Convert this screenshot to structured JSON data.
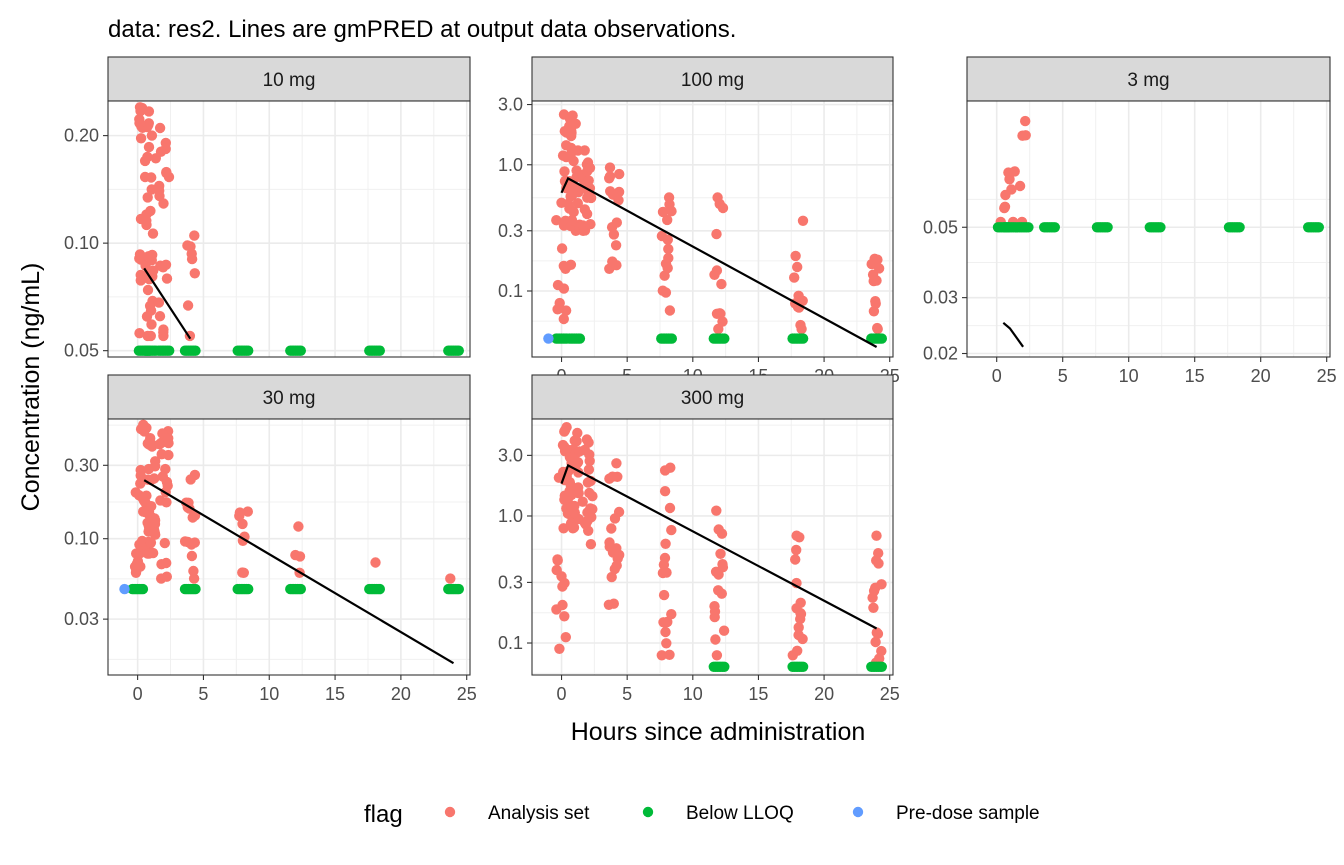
{
  "chart_data": {
    "type": "scatter",
    "title": "data: res2. Lines are gmPRED at output data observations.",
    "xlabel": "Hours since administration",
    "ylabel": "Concentration (ng/mL)",
    "x_scale": "linear",
    "y_scale": "log10",
    "x_ticks": [
      0,
      5,
      10,
      15,
      20,
      25
    ],
    "x_tick_labels": [
      "0",
      "5",
      "10",
      "15",
      "20",
      "25"
    ],
    "facet_by": "dose",
    "grid": true,
    "legend": {
      "title": "flag",
      "position": "bottom",
      "entries": [
        {
          "label": "Analysis set",
          "color": "#F8766D"
        },
        {
          "label": "Below LLOQ",
          "color": "#00BA38"
        },
        {
          "label": "Pre-dose sample",
          "color": "#619CFF"
        }
      ]
    },
    "panels": [
      {
        "strip": "10 mg",
        "ylim": [
          0.048,
          0.25
        ],
        "y_ticks": [
          0.05,
          0.1,
          0.2
        ],
        "y_tick_labels": [
          "0.05",
          "0.10",
          "0.20"
        ],
        "x_axis_shown": false,
        "pred_line": {
          "x": [
            0.5,
            4
          ],
          "y": [
            0.085,
            0.054
          ]
        },
        "analysis_groups": [
          {
            "x": 0.5,
            "ymin": 0.055,
            "ymax": 0.24,
            "n": 25
          },
          {
            "x": 1,
            "ymin": 0.055,
            "ymax": 0.2,
            "n": 25
          },
          {
            "x": 2,
            "ymin": 0.055,
            "ymax": 0.21,
            "n": 20
          },
          {
            "x": 4,
            "ymin": 0.055,
            "ymax": 0.105,
            "n": 8
          }
        ],
        "blq_groups": [
          {
            "x": 0.5,
            "y": 0.05
          },
          {
            "x": 1,
            "y": 0.05
          },
          {
            "x": 2,
            "y": 0.05
          },
          {
            "x": 4,
            "y": 0.05
          },
          {
            "x": 8,
            "y": 0.05
          },
          {
            "x": 12,
            "y": 0.05
          },
          {
            "x": 18,
            "y": 0.05
          },
          {
            "x": 24,
            "y": 0.05
          }
        ],
        "predose_points": []
      },
      {
        "strip": "100 mg",
        "ylim": [
          0.03,
          3.2
        ],
        "y_ticks": [
          0.1,
          0.3,
          1.0,
          3.0
        ],
        "y_tick_labels": [
          "0.1",
          "0.3",
          "1.0",
          "3.0"
        ],
        "x_axis_shown": true,
        "pred_line": {
          "x": [
            0,
            0.5,
            24
          ],
          "y": [
            0.6,
            0.78,
            0.036
          ]
        },
        "analysis_groups": [
          {
            "x": 0,
            "ymin": 0.06,
            "ymax": 0.5,
            "n": 10
          },
          {
            "x": 0.5,
            "ymin": 0.15,
            "ymax": 2.5,
            "n": 25
          },
          {
            "x": 1,
            "ymin": 0.3,
            "ymax": 2.3,
            "n": 25
          },
          {
            "x": 2,
            "ymin": 0.3,
            "ymax": 1.3,
            "n": 20
          },
          {
            "x": 4,
            "ymin": 0.15,
            "ymax": 0.95,
            "n": 15
          },
          {
            "x": 8,
            "ymin": 0.07,
            "ymax": 0.55,
            "n": 15
          },
          {
            "x": 12,
            "ymin": 0.05,
            "ymax": 0.55,
            "n": 12
          },
          {
            "x": 18,
            "ymin": 0.05,
            "ymax": 0.36,
            "n": 12
          },
          {
            "x": 24,
            "ymin": 0.05,
            "ymax": 0.18,
            "n": 12
          }
        ],
        "blq_groups": [
          {
            "x": 0,
            "y": 0.042
          },
          {
            "x": 1,
            "y": 0.042
          },
          {
            "x": 8,
            "y": 0.042
          },
          {
            "x": 12,
            "y": 0.042
          },
          {
            "x": 18,
            "y": 0.042
          },
          {
            "x": 24,
            "y": 0.042
          }
        ],
        "predose_points": [
          {
            "x": -1,
            "y": 0.042
          }
        ]
      },
      {
        "strip": "3 mg",
        "ylim": [
          0.0195,
          0.125
        ],
        "y_ticks": [
          0.02,
          0.03,
          0.05
        ],
        "y_tick_labels": [
          "0.02",
          "0.03",
          "0.05"
        ],
        "x_axis_shown": true,
        "pred_line": {
          "x": [
            0.5,
            1,
            2
          ],
          "y": [
            0.025,
            0.024,
            0.021
          ]
        },
        "analysis_groups": [
          {
            "x": 0.5,
            "ymin": 0.052,
            "ymax": 0.058,
            "n": 3
          },
          {
            "x": 1,
            "ymin": 0.052,
            "ymax": 0.075,
            "n": 6
          },
          {
            "x": 2,
            "ymin": 0.052,
            "ymax": 0.108,
            "n": 5
          }
        ],
        "blq_groups": [
          {
            "x": 0.5,
            "y": 0.05
          },
          {
            "x": 1,
            "y": 0.05
          },
          {
            "x": 2,
            "y": 0.05
          },
          {
            "x": 4,
            "y": 0.05
          },
          {
            "x": 8,
            "y": 0.05
          },
          {
            "x": 12,
            "y": 0.05
          },
          {
            "x": 18,
            "y": 0.05
          },
          {
            "x": 24,
            "y": 0.05
          }
        ],
        "predose_points": []
      },
      {
        "strip": "30 mg",
        "ylim": [
          0.013,
          0.6
        ],
        "y_ticks": [
          0.03,
          0.1,
          0.3
        ],
        "y_tick_labels": [
          "0.03",
          "0.10",
          "0.30"
        ],
        "x_axis_shown": true,
        "pred_line": {
          "x": [
            0.5,
            24
          ],
          "y": [
            0.24,
            0.0155
          ]
        },
        "analysis_groups": [
          {
            "x": 0,
            "ymin": 0.06,
            "ymax": 0.2,
            "n": 10
          },
          {
            "x": 0.5,
            "ymin": 0.08,
            "ymax": 0.55,
            "n": 25
          },
          {
            "x": 1,
            "ymin": 0.08,
            "ymax": 0.45,
            "n": 25
          },
          {
            "x": 2,
            "ymin": 0.055,
            "ymax": 0.5,
            "n": 20
          },
          {
            "x": 4,
            "ymin": 0.055,
            "ymax": 0.26,
            "n": 15
          },
          {
            "x": 8,
            "ymin": 0.06,
            "ymax": 0.15,
            "n": 8
          },
          {
            "x": 12,
            "ymin": 0.06,
            "ymax": 0.12,
            "n": 4
          },
          {
            "x": 18,
            "ymin": 0.065,
            "ymax": 0.07,
            "n": 1
          },
          {
            "x": 24,
            "ymin": 0.052,
            "ymax": 0.055,
            "n": 1
          }
        ],
        "blq_groups": [
          {
            "x": 0,
            "y": 0.047
          },
          {
            "x": 4,
            "y": 0.047
          },
          {
            "x": 8,
            "y": 0.047
          },
          {
            "x": 12,
            "y": 0.047
          },
          {
            "x": 18,
            "y": 0.047
          },
          {
            "x": 24,
            "y": 0.047
          }
        ],
        "predose_points": [
          {
            "x": -1,
            "y": 0.047
          }
        ]
      },
      {
        "strip": "300 mg",
        "ylim": [
          0.056,
          5.8
        ],
        "y_ticks": [
          0.1,
          0.3,
          1.0,
          3.0
        ],
        "y_tick_labels": [
          "0.1",
          "0.3",
          "1.0",
          "3.0"
        ],
        "x_axis_shown": true,
        "pred_line": {
          "x": [
            0,
            0.5,
            24
          ],
          "y": [
            1.8,
            2.5,
            0.13
          ]
        },
        "analysis_groups": [
          {
            "x": 0,
            "ymin": 0.09,
            "ymax": 2.0,
            "n": 12
          },
          {
            "x": 0.5,
            "ymin": 0.8,
            "ymax": 5.0,
            "n": 25
          },
          {
            "x": 1,
            "ymin": 0.8,
            "ymax": 4.5,
            "n": 25
          },
          {
            "x": 2,
            "ymin": 0.6,
            "ymax": 4.0,
            "n": 20
          },
          {
            "x": 4,
            "ymin": 0.2,
            "ymax": 2.6,
            "n": 18
          },
          {
            "x": 8,
            "ymin": 0.08,
            "ymax": 2.4,
            "n": 18
          },
          {
            "x": 12,
            "ymin": 0.08,
            "ymax": 1.1,
            "n": 16
          },
          {
            "x": 18,
            "ymin": 0.08,
            "ymax": 0.7,
            "n": 15
          },
          {
            "x": 24,
            "ymin": 0.07,
            "ymax": 0.7,
            "n": 15
          }
        ],
        "blq_groups": [
          {
            "x": 12,
            "y": 0.065
          },
          {
            "x": 18,
            "y": 0.065
          },
          {
            "x": 24,
            "y": 0.065
          }
        ],
        "predose_points": []
      }
    ]
  }
}
